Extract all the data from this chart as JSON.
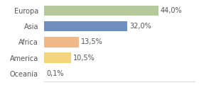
{
  "categories": [
    "Europa",
    "Asia",
    "Africa",
    "America",
    "Oceania"
  ],
  "values": [
    44.0,
    32.0,
    13.5,
    10.5,
    0.1
  ],
  "labels": [
    "44,0%",
    "32,0%",
    "13,5%",
    "10,5%",
    "0,1%"
  ],
  "bar_colors": [
    "#b5c99a",
    "#6e8fbf",
    "#f0b98a",
    "#f5d57a",
    "#e8e8e8"
  ],
  "background_color": "#ffffff",
  "xlim": [
    0,
    58
  ],
  "bar_height": 0.65,
  "label_fontsize": 7.0,
  "category_fontsize": 7.0
}
